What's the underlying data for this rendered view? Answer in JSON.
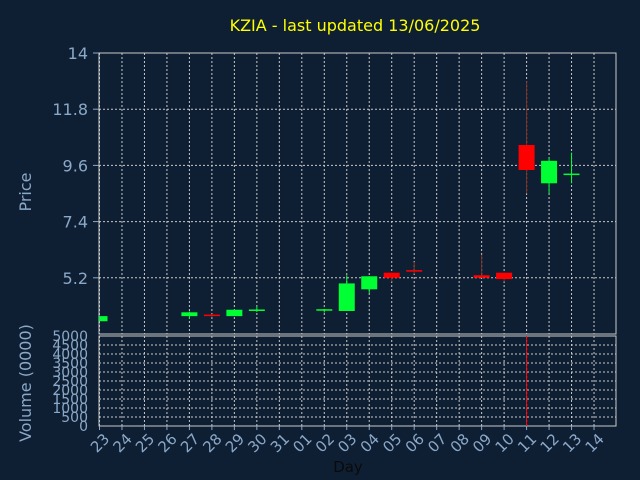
{
  "title": "KZIA - last updated 13/06/2025",
  "colors": {
    "background": "#0f1f33",
    "up": "#00ff33",
    "down": "#ff0000",
    "wick": "#7a3020",
    "title": "#ffff00",
    "axis_text": "#8aa8c8",
    "grid": "#c8c8c8"
  },
  "chart_data": [
    {
      "type": "candlestick",
      "title": "KZIA - last updated 13/06/2025",
      "ylabel": "Price",
      "ylim": [
        3.0,
        14.0
      ],
      "yticks": [
        "14",
        "11.8",
        "9.6",
        "7.4",
        "5.2"
      ],
      "ytick_values": [
        14,
        11.8,
        9.6,
        7.4,
        5.2
      ],
      "grid": true,
      "x": [
        "23",
        "24",
        "25",
        "26",
        "27",
        "28",
        "29",
        "30",
        "31",
        "01",
        "02",
        "03",
        "04",
        "05",
        "06",
        "07",
        "08",
        "09",
        "10",
        "11",
        "12",
        "13",
        "14"
      ],
      "candles": [
        {
          "x": "23",
          "open": 3.5,
          "close": 3.7,
          "high": 3.7,
          "low": 3.5
        },
        {
          "x": "27",
          "open": 3.7,
          "close": 3.85,
          "high": 3.88,
          "low": 3.6
        },
        {
          "x": "28",
          "open": 3.76,
          "close": 3.72,
          "high": 3.78,
          "low": 3.66
        },
        {
          "x": "29",
          "open": 3.7,
          "close": 3.95,
          "high": 3.95,
          "low": 3.7
        },
        {
          "x": "30",
          "open": 3.9,
          "close": 3.96,
          "high": 4.08,
          "low": 3.86
        },
        {
          "x": "02",
          "open": 3.92,
          "close": 3.97,
          "high": 3.97,
          "low": 3.84
        },
        {
          "x": "03",
          "open": 3.9,
          "close": 4.98,
          "high": 5.3,
          "low": 3.9
        },
        {
          "x": "04",
          "open": 4.75,
          "close": 5.26,
          "high": 5.26,
          "low": 4.6
        },
        {
          "x": "05",
          "open": 5.4,
          "close": 5.2,
          "high": 5.4,
          "low": 5.05
        },
        {
          "x": "06",
          "open": 5.5,
          "close": 5.45,
          "high": 5.82,
          "low": 5.35
        },
        {
          "x": "09",
          "open": 5.3,
          "close": 5.2,
          "high": 6.1,
          "low": 5.2
        },
        {
          "x": "10",
          "open": 5.4,
          "close": 5.15,
          "high": 5.4,
          "low": 5.05
        },
        {
          "x": "11",
          "open": 10.4,
          "close": 9.42,
          "high": 12.9,
          "low": 8.5
        },
        {
          "x": "12",
          "open": 8.9,
          "close": 9.78,
          "high": 9.9,
          "low": 8.5
        },
        {
          "x": "13",
          "open": 9.25,
          "close": 9.28,
          "high": 10.1,
          "low": 8.9
        }
      ]
    },
    {
      "type": "bar",
      "ylabel": "Volume (0000)",
      "ylim": [
        0,
        5000
      ],
      "yticks": [
        "5000",
        "4500",
        "4000",
        "3500",
        "3000",
        "2500",
        "2000",
        "1500",
        "1000",
        "500",
        "0"
      ],
      "ytick_values": [
        5000,
        4500,
        4000,
        3500,
        3000,
        2500,
        2000,
        1500,
        1000,
        500,
        0
      ],
      "xlabel": "Day",
      "categories": [
        "23",
        "24",
        "25",
        "26",
        "27",
        "28",
        "29",
        "30",
        "31",
        "01",
        "02",
        "03",
        "04",
        "05",
        "06",
        "07",
        "08",
        "09",
        "10",
        "11",
        "12",
        "13",
        "14"
      ],
      "bars": [
        {
          "x": "11",
          "value": 5000
        }
      ]
    }
  ]
}
